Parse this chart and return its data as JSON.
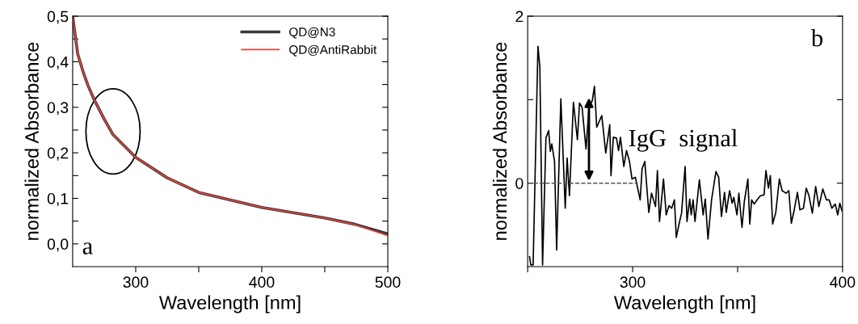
{
  "chart_data": [
    {
      "type": "line",
      "xlabel": "Wavelength [nm]",
      "ylabel": "normalized Absorbance",
      "annotations": [
        "a"
      ],
      "xlim": [
        250,
        500
      ],
      "ylim": [
        -0.05,
        0.5
      ],
      "xticks": [
        300,
        {
          "value": 350,
          "label": null
        },
        400,
        {
          "value": 450,
          "label": null
        },
        500
      ],
      "yticks": [
        {
          "value": 0,
          "label": "0,0"
        },
        {
          "value": 0.05,
          "label": null
        },
        {
          "value": 0.1,
          "label": "0,1"
        },
        {
          "value": 0.15,
          "label": null
        },
        {
          "value": 0.2,
          "label": "0,2"
        },
        {
          "value": 0.25,
          "label": null
        },
        {
          "value": 0.3,
          "label": "0,3"
        },
        {
          "value": 0.35,
          "label": null
        },
        {
          "value": 0.4,
          "label": "0,4"
        },
        {
          "value": 0.45,
          "label": null
        },
        {
          "value": 0.5,
          "label": "0,5"
        }
      ],
      "legend": "top right",
      "grid": false,
      "x": [
        250,
        254,
        258.5,
        262,
        267,
        275,
        282,
        300,
        325,
        350,
        400,
        450,
        474,
        500
      ],
      "series": [
        {
          "name": "QD@N3",
          "color": "#3a3a3a",
          "values": [
            0.5,
            0.417,
            0.376,
            0.349,
            0.317,
            0.274,
            0.24,
            0.19,
            0.145,
            0.113,
            0.08,
            0.057,
            0.043,
            0.022
          ]
        },
        {
          "name": "QD@AntiRabbit",
          "color": "#e8403a",
          "values": [
            0.5,
            0.417,
            0.376,
            0.349,
            0.317,
            0.274,
            0.24,
            0.19,
            0.145,
            0.113,
            0.08,
            0.057,
            0.042,
            0.018
          ]
        }
      ]
    },
    {
      "type": "line",
      "xlabel": "Wavelength [nm]",
      "ylabel": "normalized Absorbance",
      "annotations": [
        "b",
        {
          "text": "IgG  signal",
          "x": 279.2,
          "y": 1.05
        }
      ],
      "xlim": [
        250,
        400
      ],
      "ylim": [
        -1,
        2
      ],
      "xticks": [
        {
          "value": 250,
          "label": null
        },
        300,
        {
          "value": 350,
          "label": null
        },
        400
      ],
      "yticks": [
        0,
        {
          "value": 1,
          "label": null
        },
        2
      ],
      "ref_lines": [
        {
          "axis": "y",
          "value": 0,
          "color": "#555555",
          "line_style": "dashed"
        }
      ],
      "grid": false,
      "legend": false,
      "series": [
        {
          "color": "#000000",
          "x": [
            250.9,
            251.5,
            252.6,
            254.9,
            255.8,
            257.1,
            258.7,
            260.0,
            260.8,
            261.5,
            262.8,
            263.8,
            265.8,
            267.9,
            268.8,
            269.9,
            271.8,
            273.7,
            274.7,
            275.9,
            277.8,
            279.2,
            280.8,
            281.8,
            282.3,
            282.9,
            285.3,
            287.2,
            289.1,
            289.7,
            290.8,
            292.3,
            293.3,
            294.2,
            295.8,
            297.1,
            298.5,
            299.7,
            301.3,
            303.6,
            304.5,
            305.8,
            307.7,
            309.0,
            310.9,
            311.8,
            312.8,
            314.7,
            316.0,
            317.3,
            318.6,
            319.9,
            320.8,
            322.2,
            323.3,
            325.0,
            325.9,
            327.2,
            327.9,
            328.8,
            329.7,
            331.8,
            333.6,
            334.6,
            335.9,
            337.6,
            339.7,
            341.0,
            342.3,
            343.8,
            344.6,
            346.2,
            347.4,
            348.2,
            349.7,
            350.6,
            352.1,
            353.2,
            354.9,
            355.8,
            356.7,
            357.9,
            359.6,
            360.9,
            362.6,
            363.5,
            364.7,
            365.6,
            366.7,
            368.2,
            369.9,
            371.2,
            373.1,
            374.4,
            375.6,
            376.9,
            378.5,
            379.7,
            381.4,
            382.7,
            384.0,
            385.6,
            387.2,
            388.7,
            390.6,
            392.3,
            393.6,
            394.9,
            396.5,
            397.7,
            398.7,
            399.7
          ],
          "values": [
            -0.88,
            -0.98,
            -0.98,
            1.64,
            1.39,
            -0.98,
            0.54,
            0.63,
            0.38,
            0.47,
            0.26,
            -0.8,
            1.01,
            -0.3,
            0.3,
            -0.15,
            0.97,
            0.52,
            0.96,
            0.91,
            0.41,
            0.91,
            0.99,
            1.16,
            0.94,
            0.67,
            0.81,
            0.36,
            0.7,
            0.09,
            0.55,
            0.54,
            0.39,
            0.55,
            0.2,
            0.39,
            0.26,
            0.05,
            0.07,
            -0.2,
            0.17,
            0.26,
            -0.35,
            -0.12,
            -0.28,
            0.15,
            -0.46,
            0.05,
            -0.38,
            -0.27,
            -0.3,
            -0.2,
            -0.65,
            -0.48,
            -0.36,
            0.2,
            -0.46,
            -0.19,
            -0.38,
            -0.2,
            -0.46,
            0.04,
            -0.38,
            -0.19,
            -0.67,
            -0.2,
            0.14,
            0.07,
            -0.4,
            -0.11,
            -0.35,
            -0.09,
            -0.24,
            -0.17,
            -0.38,
            -0.12,
            -0.53,
            -0.22,
            0.05,
            -0.49,
            -0.2,
            -0.25,
            -0.19,
            -0.15,
            -0.14,
            0.15,
            -0.06,
            0.09,
            -0.49,
            -0.35,
            0.05,
            -0.09,
            -0.12,
            -0.09,
            -0.48,
            -0.33,
            -0.11,
            -0.32,
            -0.3,
            -0.06,
            -0.15,
            -0.36,
            -0.04,
            -0.28,
            -0.07,
            -0.2,
            -0.2,
            -0.3,
            -0.25,
            -0.38,
            -0.24,
            -0.33
          ]
        }
      ]
    }
  ]
}
